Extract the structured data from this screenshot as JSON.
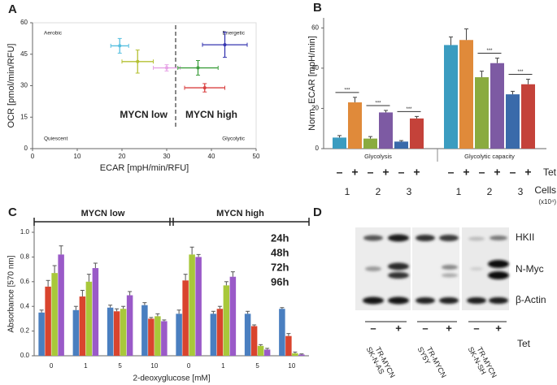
{
  "chart_data": [
    {
      "type": "scatter",
      "panel": "A",
      "xlabel": "ECAR [mpH/min/RFU]",
      "ylabel": "OCR [pmol/min/RFU]",
      "x": [
        19.5,
        23.5,
        30,
        37,
        43,
        38.5
      ],
      "values": [
        49,
        41.5,
        38.5,
        38.5,
        49.5,
        29
      ],
      "xerr": [
        2,
        3.5,
        3,
        4.5,
        5,
        4.5
      ],
      "yerr": [
        3.5,
        5.5,
        1.5,
        3.5,
        6,
        2
      ],
      "colors": [
        "#56bfe0",
        "#b4c032",
        "#e6a2e6",
        "#3f9f3f",
        "#3535b0",
        "#d94040"
      ],
      "xlim": [
        0,
        50
      ],
      "ylim": [
        0,
        60
      ],
      "xticks": [
        0,
        10,
        20,
        30,
        40,
        50
      ],
      "yticks": [
        0,
        15,
        30,
        45,
        60
      ],
      "threshold_x": 32,
      "corner_labels": [
        "Aerobic",
        "Energetic",
        "Quiescent",
        "Glycolytic"
      ],
      "group_labels": [
        "MYCN low",
        "MYCN high"
      ]
    },
    {
      "type": "bar",
      "panel": "B",
      "ylabel": "Norm. ECAR [mpH/min]",
      "categories": [
        "Glycolysis",
        "Glycolytic capacity"
      ],
      "series": [
        {
          "color": "#3b9cc0",
          "values": [
            5.5,
            51.5
          ],
          "errors": [
            1,
            4
          ]
        },
        {
          "color": "#e08a3a",
          "values": [
            23,
            54
          ],
          "errors": [
            2.5,
            5.5
          ]
        },
        {
          "color": "#8aab3f",
          "values": [
            5,
            35.5
          ],
          "errors": [
            1,
            3
          ]
        },
        {
          "color": "#7d5aa3",
          "values": [
            18,
            42.5
          ],
          "errors": [
            1,
            2.5
          ]
        },
        {
          "color": "#3a6aaa",
          "values": [
            3.5,
            27
          ],
          "errors": [
            0.5,
            1.5
          ]
        },
        {
          "color": "#c4423a",
          "values": [
            15,
            32
          ],
          "errors": [
            1,
            2.5
          ]
        }
      ],
      "ylim": [
        0,
        65
      ],
      "yticks": [
        0,
        20,
        40,
        60
      ],
      "significance": [
        [
          "***",
          "***",
          "***"
        ],
        [
          null,
          "***",
          "***"
        ]
      ],
      "tet_labels": [
        "–",
        "+",
        "–",
        "+",
        "–",
        "+"
      ],
      "tet_title": "Tet",
      "cell_labels": [
        "1",
        "2",
        "3"
      ],
      "cell_title": "Cells",
      "cell_unit": "(x10⁴)"
    },
    {
      "type": "bar",
      "panel": "C",
      "ylabel": "Absorbance [570 nm]",
      "xlabel": "2-deoxyglucose [mM]",
      "categories": [
        "0",
        "1",
        "5",
        "10",
        "0",
        "1",
        "5",
        "10"
      ],
      "groups": [
        "MYCN low",
        "MYCN high"
      ],
      "series": [
        {
          "name": "24h",
          "color": "#4a7fc0",
          "values": [
            0.35,
            0.37,
            0.39,
            0.41,
            0.34,
            0.34,
            0.34,
            0.38
          ],
          "errors": [
            0.02,
            0.03,
            0.02,
            0.02,
            0.03,
            0.02,
            0.02,
            0.01
          ]
        },
        {
          "name": "48h",
          "color": "#d9442e",
          "values": [
            0.56,
            0.48,
            0.36,
            0.3,
            0.61,
            0.38,
            0.24,
            0.16
          ],
          "errors": [
            0.05,
            0.05,
            0.02,
            0.01,
            0.05,
            0.02,
            0.01,
            0.02
          ]
        },
        {
          "name": "72h",
          "color": "#a8c83a",
          "values": [
            0.67,
            0.6,
            0.38,
            0.32,
            0.82,
            0.57,
            0.08,
            0.02
          ],
          "errors": [
            0.06,
            0.06,
            0.02,
            0.02,
            0.06,
            0.03,
            0.01,
            0.01
          ]
        },
        {
          "name": "96h",
          "color": "#9a5ac8",
          "values": [
            0.82,
            0.71,
            0.49,
            0.28,
            0.8,
            0.64,
            0.05,
            0.01
          ],
          "errors": [
            0.07,
            0.04,
            0.03,
            0.01,
            0.02,
            0.04,
            0.01,
            0.005
          ]
        }
      ],
      "ylim": [
        0,
        1.0
      ],
      "yticks": [
        {
          "value": 0,
          "label": "0.0"
        },
        0.2,
        0.4,
        0.6,
        0.8,
        {
          "value": 1.0,
          "label": "1.0"
        }
      ]
    }
  ],
  "blot": {
    "panel": "D",
    "proteins": [
      "HKII",
      "N-Myc",
      "β-Actin"
    ],
    "tet_labels": [
      "–",
      "+",
      "–",
      "+",
      "–",
      "+"
    ],
    "tet_title": "Tet",
    "cell_lines": [
      [
        "SK-N-AS",
        "TR-MYCN"
      ],
      [
        "SY5Y",
        "TR-MYCN"
      ],
      [
        "SK-N-SH",
        "TR-MYCN"
      ]
    ]
  }
}
